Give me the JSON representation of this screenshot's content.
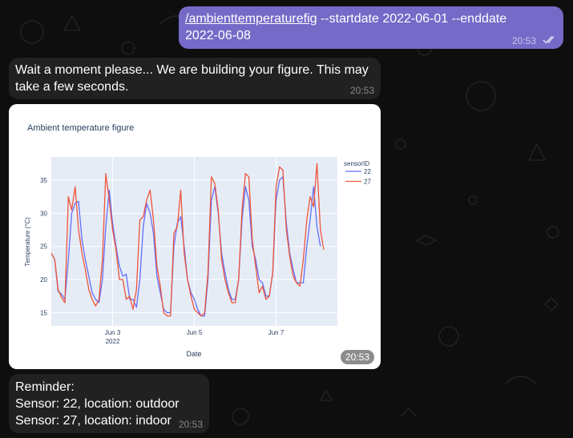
{
  "messages": {
    "command": {
      "cmd": "/ambienttemperaturefig",
      "args_line1": " --startdate 2022-06-01 --enddate",
      "args_line2": "2022-06-08",
      "time": "20:53"
    },
    "wait": {
      "line1": "Wait a moment please... We are building your figure. This may",
      "line2": "take a few seconds.",
      "time": "20:53"
    },
    "figure": {
      "time": "20:53"
    },
    "reminder": {
      "line1": "Reminder:",
      "line2": "Sensor: 22, location: outdoor",
      "line3": "Sensor: 27, location: indoor",
      "time": "20:53"
    }
  },
  "colors": {
    "outgoing_bubble": "#766ac8",
    "incoming_bubble": "#212121",
    "plot_bg": "#e5ecf6",
    "series_22": "#636efa",
    "series_27": "#ef553b"
  },
  "chart_data": {
    "type": "line",
    "title": "Ambient temperature figure",
    "xlabel": "Date",
    "ylabel": "Temperature (°C)",
    "x_range": [
      "2022-06-01T12:00",
      "2022-06-08T12:00"
    ],
    "x_step_hours": 2,
    "ylim": [
      13,
      38.5
    ],
    "yticks": [
      15,
      20,
      25,
      30,
      35
    ],
    "xticks": [
      {
        "x": "2022-06-03",
        "label": "Jun 3",
        "sub": "2022"
      },
      {
        "x": "2022-06-05",
        "label": "Jun 5",
        "sub": ""
      },
      {
        "x": "2022-06-07",
        "label": "Jun 7",
        "sub": ""
      }
    ],
    "grid": true,
    "legend": {
      "title": "sensorID",
      "position": "top-right"
    },
    "series": [
      {
        "name": "22",
        "color": "#636efa",
        "values": [
          24.0,
          23.0,
          18.2,
          17.8,
          17.0,
          23.0,
          30.0,
          31.5,
          31.8,
          26.0,
          23.0,
          20.5,
          18.0,
          17.0,
          16.5,
          20.0,
          28.0,
          33.5,
          28.5,
          25.0,
          22.0,
          20.5,
          20.8,
          17.0,
          17.0,
          15.8,
          20.0,
          28.0,
          31.5,
          30.0,
          27.0,
          20.5,
          18.0,
          15.5,
          15.0,
          15.0,
          25.0,
          28.5,
          29.5,
          25.0,
          20.0,
          18.0,
          17.0,
          15.5,
          14.5,
          14.5,
          20.0,
          32.0,
          34.0,
          30.0,
          24.0,
          21.0,
          18.5,
          17.0,
          17.0,
          20.0,
          29.0,
          34.0,
          32.0,
          25.0,
          23.0,
          20.0,
          19.5,
          17.5,
          17.5,
          21.0,
          32.0,
          35.0,
          35.5,
          28.5,
          24.0,
          21.5,
          19.5,
          19.5,
          19.5,
          25.0,
          29.0,
          34.0,
          28.0,
          25.0
        ]
      },
      {
        "name": "27",
        "color": "#ef553b",
        "values": [
          24.0,
          23.0,
          18.5,
          17.3,
          16.5,
          32.5,
          30.5,
          34.0,
          27.5,
          24.0,
          21.5,
          18.5,
          17.0,
          16.0,
          17.0,
          23.0,
          36.0,
          32.0,
          27.5,
          24.5,
          20.0,
          20.0,
          17.0,
          17.5,
          15.5,
          18.5,
          29.0,
          29.5,
          32.0,
          33.5,
          29.0,
          22.0,
          19.0,
          15.0,
          14.5,
          14.5,
          27.0,
          28.0,
          33.5,
          24.0,
          20.0,
          17.5,
          15.5,
          15.0,
          14.5,
          15.0,
          21.0,
          35.5,
          34.5,
          30.5,
          23.0,
          20.0,
          18.0,
          16.5,
          16.5,
          20.0,
          30.5,
          36.0,
          35.5,
          26.0,
          22.0,
          18.0,
          19.0,
          17.0,
          17.5,
          21.0,
          34.0,
          37.0,
          36.5,
          27.5,
          23.5,
          20.5,
          19.5,
          19.0,
          23.0,
          29.0,
          32.5,
          31.0,
          37.5,
          27.5,
          24.5
        ]
      }
    ]
  }
}
